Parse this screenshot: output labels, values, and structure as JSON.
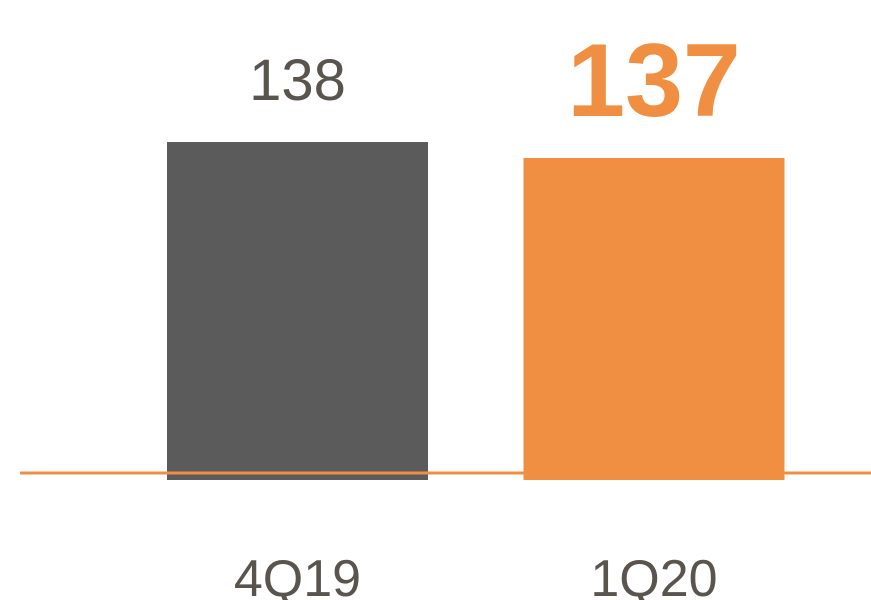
{
  "chart_data": {
    "type": "bar",
    "categories": [
      "4Q19",
      "1Q20"
    ],
    "values": [
      138,
      137
    ],
    "value_labels": [
      "138",
      "137"
    ],
    "colors": [
      "#5b5b5b",
      "#f08f41"
    ],
    "ylim": [
      117,
      140
    ]
  }
}
